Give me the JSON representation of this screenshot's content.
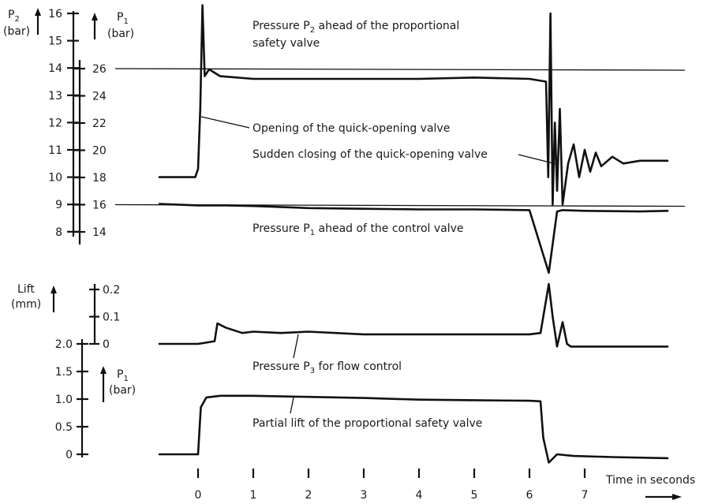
{
  "chart_data": [
    {
      "type": "line",
      "title": "",
      "x_unit": "s",
      "xlim": [
        0,
        8.5
      ],
      "y_axes": [
        {
          "label_main": "P",
          "label_sub": "2",
          "label_unit": "(bar)",
          "ticks": [
            "16",
            "15",
            "14",
            "13",
            "12",
            "11",
            "10",
            "9",
            "8"
          ]
        },
        {
          "label_main": "P",
          "label_sub": "1",
          "label_unit": "(bar)",
          "ticks": [
            "26",
            "24",
            "22",
            "20",
            "18",
            "16",
            "14"
          ]
        }
      ],
      "series": [
        {
          "axis": "P2 (bar)",
          "x": [
            -0.7,
            -0.05,
            0.0,
            0.04,
            0.08,
            0.12,
            0.2,
            0.4,
            1.0,
            2.0,
            3.0,
            4.0,
            5.0,
            6.0,
            6.3,
            6.34,
            6.38,
            6.42,
            6.46,
            6.5,
            6.55,
            6.6,
            6.7,
            6.8,
            6.9,
            7.0,
            7.1,
            7.2,
            7.3,
            7.5,
            7.7,
            8.0,
            8.5
          ],
          "y": [
            10.0,
            10.0,
            10.3,
            12.5,
            16.3,
            13.7,
            13.95,
            13.7,
            13.6,
            13.6,
            13.6,
            13.6,
            13.65,
            13.6,
            13.5,
            10.0,
            16.0,
            9.0,
            12.0,
            9.5,
            12.5,
            9.0,
            10.5,
            11.2,
            10.0,
            11.0,
            10.2,
            10.9,
            10.4,
            10.75,
            10.5,
            10.6,
            10.6
          ]
        },
        {
          "axis": "P1 (bar)",
          "x": [
            -0.7,
            0.0,
            0.5,
            1.0,
            2.0,
            3.0,
            4.0,
            5.0,
            6.0,
            6.35,
            6.5,
            6.6,
            7.0,
            8.0,
            8.5
          ],
          "y": [
            16.05,
            15.95,
            15.95,
            15.9,
            15.75,
            15.7,
            15.65,
            15.65,
            15.6,
            11.0,
            15.5,
            15.6,
            15.55,
            15.5,
            15.55
          ]
        }
      ],
      "reference_lines": [
        {
          "axis": "P1 (bar)",
          "y": 26
        },
        {
          "axis": "P1 (bar)",
          "y": 16
        }
      ],
      "annotations": [
        {
          "pre": "Pressure P",
          "sub": "2",
          "post": " ahead of the proportional"
        },
        {
          "pre": "safety valve",
          "sub": "",
          "post": ""
        },
        {
          "pre": "Opening of the quick-opening valve",
          "sub": "",
          "post": ""
        },
        {
          "pre": "Sudden closing of the quick-opening valve",
          "sub": "",
          "post": ""
        },
        {
          "pre": "Pressure P",
          "sub": "1",
          "post": " ahead of the control valve"
        }
      ]
    },
    {
      "type": "line",
      "title": "",
      "x_unit": "s",
      "xlim": [
        0,
        8.5
      ],
      "y_axes": [
        {
          "label_main": "Lift",
          "label_sub": "",
          "label_unit": "(mm)",
          "ticks": [
            "0.2",
            "0.1",
            "0"
          ]
        },
        {
          "label_main": "P",
          "label_sub": "1",
          "label_unit": "(bar)",
          "ticks": [
            "2.0",
            "1.5",
            "1.0",
            "0.5",
            "0"
          ]
        }
      ],
      "series": [
        {
          "axis": "Lift (mm)",
          "x": [
            -0.7,
            0.0,
            0.3,
            0.35,
            0.5,
            0.8,
            1.0,
            1.5,
            2.0,
            3.0,
            4.0,
            5.0,
            6.0,
            6.2,
            6.35,
            6.42,
            6.5,
            6.6,
            6.68,
            6.75,
            7.0,
            8.5
          ],
          "y": [
            0.0,
            0.0,
            0.01,
            0.075,
            0.06,
            0.04,
            0.045,
            0.04,
            0.045,
            0.035,
            0.035,
            0.035,
            0.035,
            0.04,
            0.22,
            0.1,
            -0.01,
            0.08,
            0.0,
            -0.01,
            -0.01,
            -0.01
          ]
        },
        {
          "axis": "P1 (bar)",
          "x": [
            -0.7,
            0.0,
            0.05,
            0.15,
            0.4,
            1.0,
            2.0,
            3.0,
            4.0,
            5.0,
            6.0,
            6.2,
            6.25,
            6.35,
            6.5,
            6.8,
            7.5,
            8.5
          ],
          "y": [
            0.0,
            0.0,
            0.85,
            1.03,
            1.06,
            1.06,
            1.04,
            1.02,
            0.99,
            0.98,
            0.97,
            0.96,
            0.3,
            -0.15,
            0.0,
            -0.03,
            -0.05,
            -0.07
          ]
        }
      ],
      "annotations": [
        {
          "pre": "Pressure P",
          "sub": "3",
          "post": " for flow control"
        },
        {
          "pre": "Partial lift of the proportional safety valve",
          "sub": "",
          "post": ""
        }
      ]
    }
  ],
  "x_axis": {
    "ticks": [
      "0",
      "1",
      "2",
      "3",
      "4",
      "5",
      "6",
      "7"
    ],
    "label": "Time in seconds"
  }
}
